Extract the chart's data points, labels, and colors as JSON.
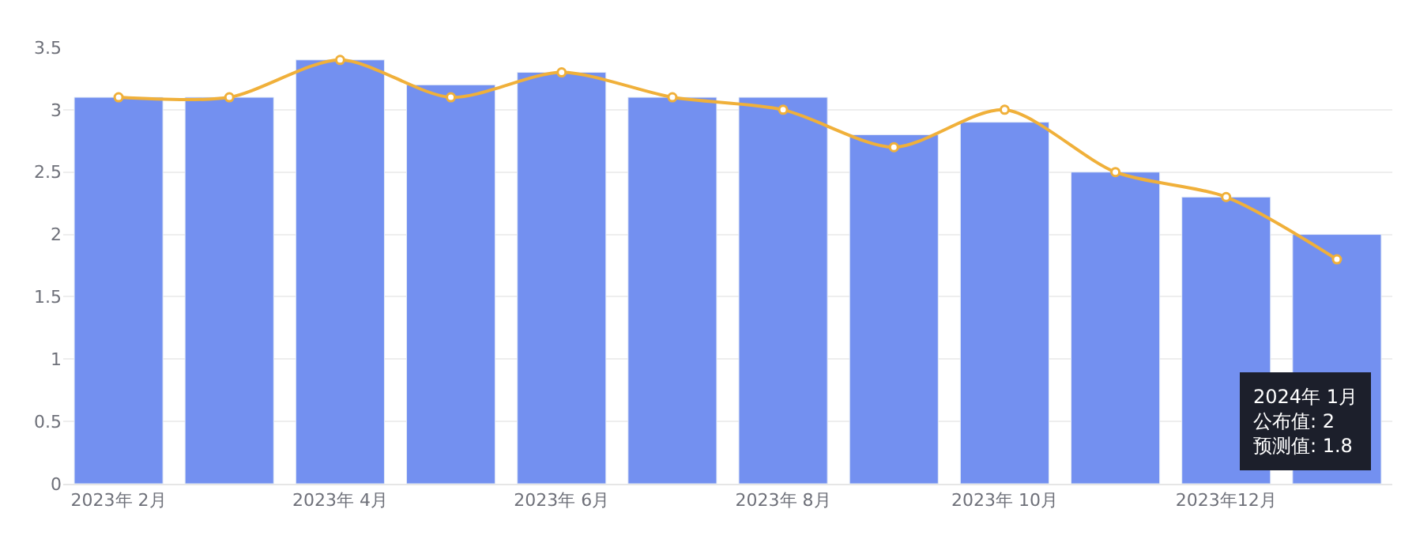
{
  "chart_data": {
    "type": "bar",
    "categories": [
      "2023年 2月",
      null,
      "2023年 4月",
      null,
      "2023年 6月",
      null,
      "2023年 8月",
      null,
      "2023年 10月",
      null,
      "2023年12月",
      null
    ],
    "series": [
      {
        "color": "#7390f0",
        "values": [
          3.1,
          3.1,
          3.4,
          3.2,
          3.3,
          3.1,
          3.1,
          2.8,
          2.9,
          2.5,
          2.3,
          2.0
        ]
      },
      {
        "color": "#f0b03a",
        "type": "line",
        "values": [
          3.1,
          3.1,
          3.4,
          3.1,
          3.3,
          3.1,
          3.0,
          2.7,
          3.0,
          2.5,
          2.3,
          1.8
        ]
      }
    ],
    "ylim": [
      0,
      3.5
    ],
    "yticks": [
      0,
      0.5,
      1,
      1.5,
      2,
      2.5,
      3,
      3.5
    ],
    "grid": "y",
    "marker": "circle",
    "line_style": "solid",
    "annotations": [
      "2024年 1月",
      "公布值: 2",
      "预测值: 1.8"
    ]
  }
}
